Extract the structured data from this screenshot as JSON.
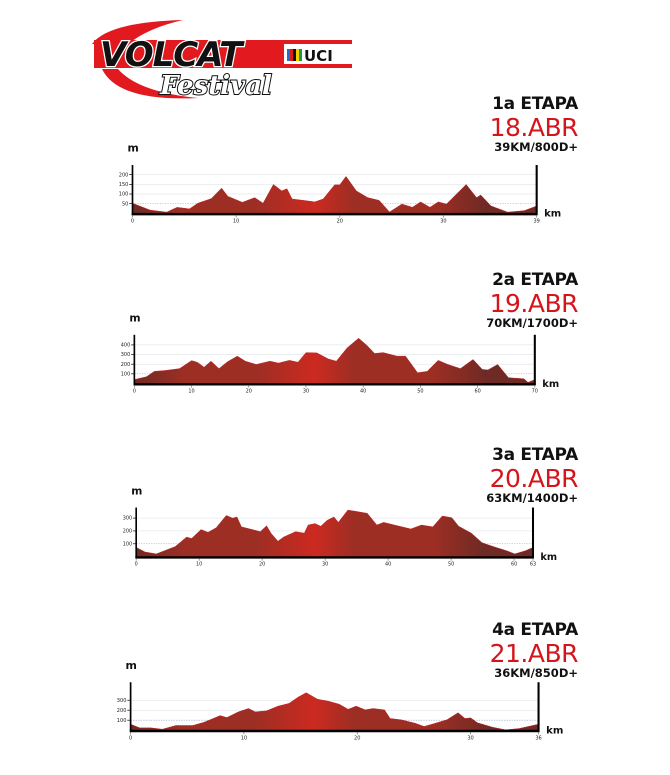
{
  "logo": {
    "brand": "VOLCAT",
    "sub": "Festival",
    "badge": "UCI"
  },
  "colors": {
    "accent": "#d4161c",
    "fill_dark": "#6e2a24",
    "fill_mid": "#9c2e24",
    "fill_bright": "#cc2a20",
    "axis": "#000000"
  },
  "chart_data": [
    {
      "type": "area",
      "title": "1a ETAPA",
      "date": "18.ABR",
      "summary": "39KM/800D+",
      "xlabel": "km",
      "ylabel": "m",
      "xlim": [
        0,
        39
      ],
      "ylim": [
        0,
        250
      ],
      "xticks": [
        0,
        10,
        20,
        30,
        39
      ],
      "yticks": [
        50,
        100,
        150,
        200
      ],
      "points": [
        [
          0,
          52
        ],
        [
          1.7,
          17
        ],
        [
          3.3,
          6
        ],
        [
          4.3,
          31
        ],
        [
          5.5,
          23
        ],
        [
          6.3,
          52
        ],
        [
          7.6,
          76
        ],
        [
          8.6,
          130
        ],
        [
          9.2,
          88
        ],
        [
          10.6,
          57
        ],
        [
          11.8,
          81
        ],
        [
          12.6,
          52
        ],
        [
          13.6,
          149
        ],
        [
          14.4,
          116
        ],
        [
          14.9,
          127
        ],
        [
          15.4,
          74
        ],
        [
          16.5,
          67
        ],
        [
          17.6,
          59
        ],
        [
          18.4,
          74
        ],
        [
          19.5,
          147
        ],
        [
          20.0,
          147
        ],
        [
          20.6,
          191
        ],
        [
          21.6,
          116
        ],
        [
          22.7,
          81
        ],
        [
          23.8,
          67
        ],
        [
          24.8,
          7
        ],
        [
          26.0,
          48
        ],
        [
          27.0,
          31
        ],
        [
          27.8,
          59
        ],
        [
          28.7,
          31
        ],
        [
          29.5,
          59
        ],
        [
          30.3,
          48
        ],
        [
          32.2,
          149
        ],
        [
          33.2,
          81
        ],
        [
          33.6,
          95
        ],
        [
          34.6,
          38
        ],
        [
          36.2,
          6
        ],
        [
          37.8,
          14
        ],
        [
          39,
          38
        ]
      ]
    },
    {
      "type": "area",
      "title": "2a ETAPA",
      "date": "19.ABR",
      "summary": "70KM/1700D+",
      "xlabel": "km",
      "ylabel": "m",
      "xlim": [
        0,
        70
      ],
      "ylim": [
        0,
        505
      ],
      "xticks": [
        0,
        10,
        20,
        30,
        40,
        50,
        60,
        70
      ],
      "yticks": [
        100,
        200,
        300,
        400
      ],
      "points": [
        [
          0,
          40
        ],
        [
          2.1,
          69
        ],
        [
          3.5,
          126
        ],
        [
          5.4,
          134
        ],
        [
          7.9,
          154
        ],
        [
          10.0,
          237
        ],
        [
          11.0,
          220
        ],
        [
          12.2,
          169
        ],
        [
          13.4,
          231
        ],
        [
          14.8,
          154
        ],
        [
          16.3,
          226
        ],
        [
          18.0,
          283
        ],
        [
          19.4,
          231
        ],
        [
          21.3,
          197
        ],
        [
          23.7,
          231
        ],
        [
          25.2,
          211
        ],
        [
          27.1,
          240
        ],
        [
          28.6,
          220
        ],
        [
          30.0,
          320
        ],
        [
          31.9,
          317
        ],
        [
          33.9,
          254
        ],
        [
          35.3,
          231
        ],
        [
          37.2,
          369
        ],
        [
          39.2,
          469
        ],
        [
          40.6,
          397
        ],
        [
          42.0,
          311
        ],
        [
          43.5,
          320
        ],
        [
          45.9,
          283
        ],
        [
          47.4,
          283
        ],
        [
          49.5,
          111
        ],
        [
          51.2,
          126
        ],
        [
          53.1,
          240
        ],
        [
          54.8,
          197
        ],
        [
          57.0,
          154
        ],
        [
          59.2,
          249
        ],
        [
          60.8,
          146
        ],
        [
          61.8,
          140
        ],
        [
          63.5,
          197
        ],
        [
          65.4,
          60
        ],
        [
          68.1,
          49
        ],
        [
          68.8,
          11
        ],
        [
          70,
          40
        ]
      ]
    },
    {
      "type": "area",
      "title": "3a ETAPA",
      "date": "20.ABR",
      "summary": "63KM/1400D+",
      "xlabel": "km",
      "ylabel": "m",
      "xlim": [
        0,
        63
      ],
      "ylim": [
        0,
        382
      ],
      "xticks": [
        0,
        10,
        20,
        30,
        40,
        50,
        60,
        63
      ],
      "yticks": [
        100,
        200,
        300
      ],
      "points": [
        [
          0,
          72
        ],
        [
          1.4,
          36
        ],
        [
          3.2,
          21
        ],
        [
          4.5,
          46
        ],
        [
          6.2,
          78
        ],
        [
          8.0,
          152
        ],
        [
          8.8,
          141
        ],
        [
          10.3,
          211
        ],
        [
          11.4,
          189
        ],
        [
          12.7,
          225
        ],
        [
          14.3,
          320
        ],
        [
          15.3,
          299
        ],
        [
          16.0,
          309
        ],
        [
          16.7,
          232
        ],
        [
          18.4,
          211
        ],
        [
          19.7,
          194
        ],
        [
          20.7,
          240
        ],
        [
          21.4,
          183
        ],
        [
          22.5,
          120
        ],
        [
          23.4,
          152
        ],
        [
          25.3,
          194
        ],
        [
          26.7,
          183
        ],
        [
          27.3,
          246
        ],
        [
          28.4,
          257
        ],
        [
          29.3,
          236
        ],
        [
          30.3,
          282
        ],
        [
          31.4,
          309
        ],
        [
          32.1,
          267
        ],
        [
          33.6,
          362
        ],
        [
          34.9,
          352
        ],
        [
          36.7,
          337
        ],
        [
          38.2,
          246
        ],
        [
          39.3,
          267
        ],
        [
          41.0,
          246
        ],
        [
          43.6,
          215
        ],
        [
          45.3,
          246
        ],
        [
          47.1,
          232
        ],
        [
          48.6,
          316
        ],
        [
          50.1,
          303
        ],
        [
          51.2,
          236
        ],
        [
          53.2,
          183
        ],
        [
          54.9,
          109
        ],
        [
          56.7,
          78
        ],
        [
          58.8,
          46
        ],
        [
          60.1,
          21
        ],
        [
          61.8,
          46
        ],
        [
          63,
          72
        ]
      ]
    },
    {
      "type": "area",
      "title": "4a ETAPA",
      "date": "21.ABR",
      "summary": "36KM/850D+",
      "xlabel": "km",
      "ylabel": "m",
      "xlim": [
        0,
        36
      ],
      "ylim": [
        0,
        480
      ],
      "xticks": [
        0,
        10,
        20,
        30,
        36
      ],
      "yticks": [
        100,
        200,
        300
      ],
      "points": [
        [
          0,
          60
        ],
        [
          0.8,
          23
        ],
        [
          1.8,
          23
        ],
        [
          2.8,
          9
        ],
        [
          4.0,
          46
        ],
        [
          5.5,
          46
        ],
        [
          6.5,
          80
        ],
        [
          7.9,
          146
        ],
        [
          8.5,
          126
        ],
        [
          9.5,
          183
        ],
        [
          10.4,
          217
        ],
        [
          11.0,
          183
        ],
        [
          12.0,
          194
        ],
        [
          13.0,
          240
        ],
        [
          14.0,
          269
        ],
        [
          14.8,
          332
        ],
        [
          15.5,
          375
        ],
        [
          16.5,
          309
        ],
        [
          17.5,
          289
        ],
        [
          18.4,
          260
        ],
        [
          19.2,
          209
        ],
        [
          19.9,
          240
        ],
        [
          20.7,
          203
        ],
        [
          21.4,
          217
        ],
        [
          22.4,
          203
        ],
        [
          22.9,
          117
        ],
        [
          23.9,
          103
        ],
        [
          25.1,
          69
        ],
        [
          25.9,
          37
        ],
        [
          26.6,
          60
        ],
        [
          27.9,
          103
        ],
        [
          28.9,
          174
        ],
        [
          29.5,
          117
        ],
        [
          30.0,
          123
        ],
        [
          30.6,
          74
        ],
        [
          31.9,
          31
        ],
        [
          33.1,
          3
        ],
        [
          34.3,
          17
        ],
        [
          36,
          60
        ]
      ]
    }
  ]
}
